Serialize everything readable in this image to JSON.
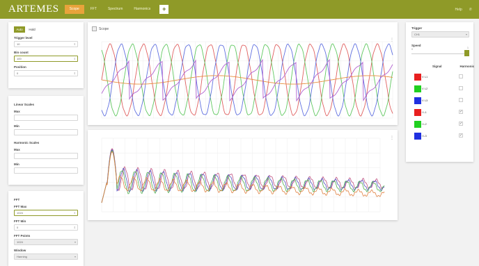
{
  "app": {
    "logo": "ARTEMES",
    "tabs": [
      "Scope",
      "FFT",
      "Spectrum",
      "Harmonics"
    ],
    "active_tab": 0,
    "add_label": "+",
    "right_links": [
      "Help",
      "✆"
    ]
  },
  "left_panel_1": {
    "modes": [
      "Auto",
      "Hold"
    ],
    "fields": [
      {
        "label": "Trigger level",
        "value": "10"
      },
      {
        "label": "Bin count",
        "value": "100"
      },
      {
        "label": "Position",
        "value": "0"
      }
    ]
  },
  "left_panel_2": {
    "section1": "Linear Scales",
    "fields1": [
      {
        "label": "Max",
        "value": ""
      },
      {
        "label": "Min",
        "value": ""
      }
    ],
    "section2": "Harmonic Scales",
    "fields2": [
      {
        "label": "Max",
        "value": ""
      },
      {
        "label": "Min",
        "value": ""
      }
    ]
  },
  "left_panel_3": {
    "section": "FFT",
    "fields": [
      {
        "label": "FFT Max",
        "value": "1024"
      },
      {
        "label": "FFT Min",
        "value": "0"
      },
      {
        "label": "FFT Points",
        "value": "1024"
      },
      {
        "label": "Window",
        "value": "Hanning"
      }
    ]
  },
  "chart1": {
    "checkbox_label": "Scope",
    "menu_icon": "⋮"
  },
  "chart2": {
    "menu_icon": "⋮"
  },
  "right_panel": {
    "trigger_label": "Trigger",
    "trigger_value": "CH1",
    "speed_label": "Speed",
    "speed_min": "0",
    "speed_max": "1",
    "col_signal": "Signal",
    "col_harmonic": "Harmonic",
    "channels": [
      {
        "name": "V L1",
        "color": "#e82020",
        "checked": ""
      },
      {
        "name": "V L2",
        "color": "#20d020",
        "checked": ""
      },
      {
        "name": "V L3",
        "color": "#2030e0",
        "checked": ""
      },
      {
        "name": "I L1",
        "color": "#e82020",
        "checked": "✓"
      },
      {
        "name": "I L2",
        "color": "#20d020",
        "checked": "✓"
      },
      {
        "name": "I L3",
        "color": "#2030e0",
        "checked": "✓"
      }
    ]
  },
  "chart_data": [
    {
      "type": "line",
      "series": [
        {
          "color": "#e06060",
          "amplitude": 1.0,
          "period": 48,
          "phase": 0
        },
        {
          "color": "#60c860",
          "amplitude": 1.0,
          "period": 48,
          "phase": 16
        },
        {
          "color": "#6070e0",
          "amplitude": 1.0,
          "period": 48,
          "phase": 32
        },
        {
          "color": "#e89040",
          "amplitude": 0.12,
          "period": 220,
          "phase": 0
        },
        {
          "color": "#b060d0",
          "amplitude": 0.55,
          "period": 48,
          "phase": 8
        }
      ],
      "y_ticks": [
        "",
        "",
        "",
        "",
        ""
      ],
      "grid": true
    },
    {
      "type": "line",
      "series": [
        {
          "color": "#c05080"
        },
        {
          "color": "#5050c0"
        },
        {
          "color": "#50b050"
        },
        {
          "color": "#e08040"
        }
      ],
      "grid": true
    }
  ]
}
